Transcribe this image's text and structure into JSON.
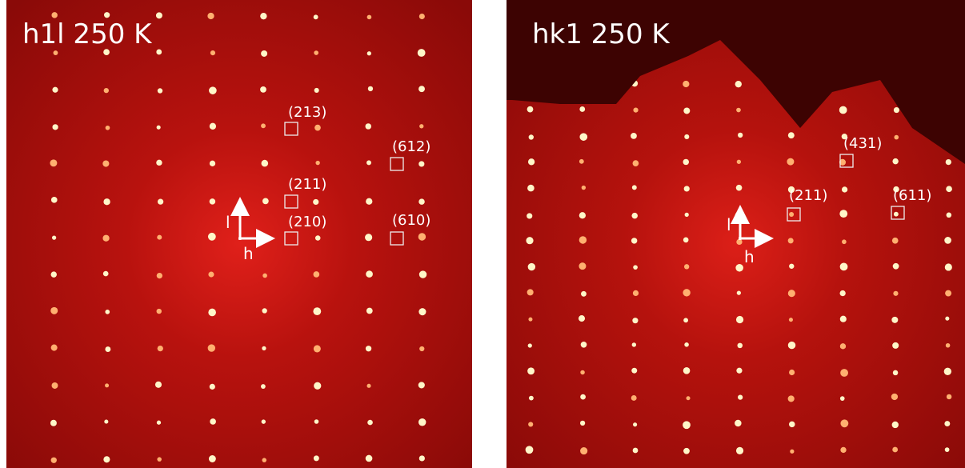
{
  "panels": [
    {
      "title": "h1l 250 K",
      "axis_up": "l",
      "axis_right": "h",
      "labels": [
        "(213)",
        "(612)",
        "(211)",
        "(210)",
        "(610)"
      ]
    },
    {
      "title": "hk1 250 K",
      "axis_up": "l",
      "axis_right": "h",
      "labels": [
        "(431)",
        "(211)",
        "(611)"
      ]
    }
  ]
}
